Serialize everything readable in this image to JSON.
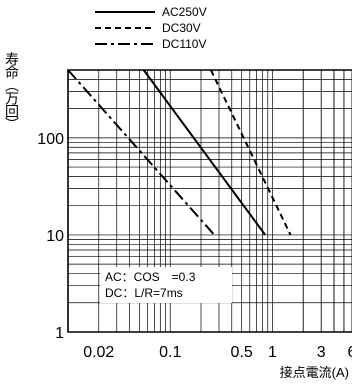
{
  "chart_data": {
    "type": "line",
    "xlabel": "接点電流(A)",
    "ylabel": "寿命（万回）",
    "x_scale": "log",
    "y_scale": "log",
    "xlim": [
      0.01,
      6
    ],
    "ylim": [
      1,
      500
    ],
    "grid": true,
    "legend_position": "top",
    "x_ticks": [
      {
        "value": 0.02,
        "label": "0.02"
      },
      {
        "value": 0.1,
        "label": "0.1"
      },
      {
        "value": 0.5,
        "label": "0.5"
      },
      {
        "value": 1,
        "label": "1"
      },
      {
        "value": 3,
        "label": "3"
      },
      {
        "value": 6,
        "label": "6"
      }
    ],
    "y_ticks": [
      {
        "value": 1,
        "label": "1"
      },
      {
        "value": 10,
        "label": "10"
      },
      {
        "value": 100,
        "label": "100"
      }
    ],
    "series": [
      {
        "name": "AC250V",
        "style": "solid",
        "x": [
          0.055,
          0.85
        ],
        "y": [
          500,
          10
        ]
      },
      {
        "name": "DC30V",
        "style": "dashed",
        "x": [
          0.25,
          1.5
        ],
        "y": [
          500,
          10
        ]
      },
      {
        "name": "DC110V",
        "style": "dashdot",
        "x": [
          0.01,
          0.27
        ],
        "y": [
          500,
          10
        ]
      }
    ],
    "annotations": [
      {
        "text": "AC：COS　=0.3"
      },
      {
        "text": "DC：L/R=7ms"
      }
    ]
  }
}
